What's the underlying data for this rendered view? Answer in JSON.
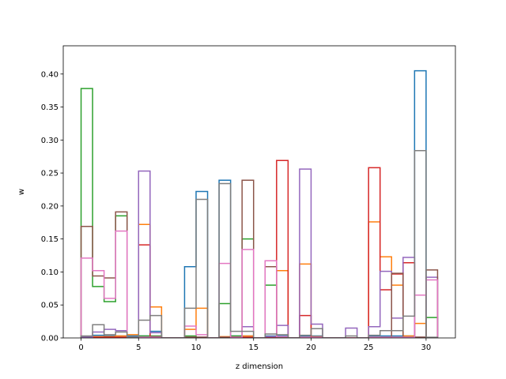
{
  "chart_data": {
    "type": "step",
    "title": "",
    "xlabel": "z dimension",
    "ylabel": "w",
    "xlim": [
      -1.55,
      32.55
    ],
    "ylim": [
      0,
      0.4428
    ],
    "x_ticks": [
      0,
      5,
      10,
      15,
      20,
      25,
      30
    ],
    "y_ticks": [
      0.0,
      0.05,
      0.1,
      0.15,
      0.2,
      0.25,
      0.3,
      0.35,
      0.4
    ],
    "y_tick_labels": [
      "0.00",
      "0.05",
      "0.10",
      "0.15",
      "0.20",
      "0.25",
      "0.30",
      "0.35",
      "0.40"
    ],
    "grid": false,
    "legend": "none",
    "bin_edges": [
      0,
      1,
      2,
      3,
      4,
      5,
      6,
      7,
      8,
      9,
      10,
      11,
      12,
      13,
      14,
      15,
      16,
      17,
      18,
      19,
      20,
      21,
      22,
      23,
      24,
      25,
      26,
      27,
      28,
      29,
      30,
      31
    ],
    "series": [
      {
        "color": "#1f77b4",
        "values": [
          0.002,
          0.004,
          0.003,
          0.003,
          0.003,
          0.003,
          0.01,
          0.0,
          0.0,
          0.108,
          0.222,
          0.0,
          0.239,
          0.003,
          0.003,
          0.0,
          0.003,
          0.003,
          0.0,
          0.003,
          0.003,
          0.0,
          0.0,
          0.0,
          0.0,
          0.003,
          0.003,
          0.003,
          0.003,
          0.405,
          0.0
        ]
      },
      {
        "color": "#ff7f0e",
        "values": [
          0.001,
          0.002,
          0.002,
          0.003,
          0.005,
          0.172,
          0.047,
          0.0,
          0.0,
          0.013,
          0.045,
          0.0,
          0.002,
          0.002,
          0.003,
          0.0,
          0.002,
          0.102,
          0.0,
          0.112,
          0.002,
          0.0,
          0.0,
          0.0,
          0.0,
          0.176,
          0.123,
          0.08,
          0.003,
          0.022,
          0.0
        ]
      },
      {
        "color": "#2ca02c",
        "values": [
          0.378,
          0.078,
          0.055,
          0.185,
          0.001,
          0.003,
          0.003,
          0.0,
          0.0,
          0.003,
          0.001,
          0.0,
          0.052,
          0.003,
          0.15,
          0.0,
          0.08,
          0.001,
          0.0,
          0.001,
          0.001,
          0.0,
          0.0,
          0.0,
          0.0,
          0.001,
          0.001,
          0.001,
          0.001,
          0.001,
          0.031
        ]
      },
      {
        "color": "#d62728",
        "values": [
          0.001,
          0.001,
          0.001,
          0.001,
          0.001,
          0.141,
          0.001,
          0.0,
          0.0,
          0.001,
          0.001,
          0.0,
          0.001,
          0.001,
          0.001,
          0.0,
          0.001,
          0.269,
          0.0,
          0.034,
          0.001,
          0.0,
          0.0,
          0.0,
          0.0,
          0.258,
          0.073,
          0.097,
          0.114,
          0.001,
          0.0
        ]
      },
      {
        "color": "#9467bd",
        "values": [
          0.001,
          0.009,
          0.013,
          0.011,
          0.001,
          0.253,
          0.008,
          0.0,
          0.0,
          0.001,
          0.001,
          0.0,
          0.001,
          0.001,
          0.017,
          0.0,
          0.002,
          0.019,
          0.0,
          0.256,
          0.021,
          0.0,
          0.0,
          0.015,
          0.0,
          0.017,
          0.101,
          0.03,
          0.122,
          0.001,
          0.092
        ]
      },
      {
        "color": "#8c564b",
        "values": [
          0.169,
          0.094,
          0.091,
          0.191,
          0.001,
          0.001,
          0.002,
          0.0,
          0.0,
          0.001,
          0.001,
          0.0,
          0.001,
          0.001,
          0.239,
          0.0,
          0.108,
          0.001,
          0.0,
          0.001,
          0.001,
          0.0,
          0.0,
          0.0,
          0.0,
          0.001,
          0.001,
          0.098,
          0.001,
          0.001,
          0.103
        ]
      },
      {
        "color": "#e377c2",
        "values": [
          0.121,
          0.102,
          0.06,
          0.162,
          0.001,
          0.001,
          0.001,
          0.0,
          0.0,
          0.018,
          0.005,
          0.0,
          0.113,
          0.001,
          0.134,
          0.0,
          0.117,
          0.002,
          0.0,
          0.001,
          0.001,
          0.0,
          0.0,
          0.0,
          0.0,
          0.001,
          0.001,
          0.001,
          0.001,
          0.065,
          0.088
        ]
      },
      {
        "color": "#7f7f7f",
        "values": [
          0.003,
          0.02,
          0.005,
          0.009,
          0.001,
          0.027,
          0.034,
          0.0,
          0.0,
          0.045,
          0.21,
          0.0,
          0.234,
          0.01,
          0.01,
          0.0,
          0.006,
          0.005,
          0.0,
          0.004,
          0.014,
          0.0,
          0.0,
          0.003,
          0.0,
          0.004,
          0.011,
          0.011,
          0.033,
          0.284,
          0.001
        ]
      }
    ]
  }
}
